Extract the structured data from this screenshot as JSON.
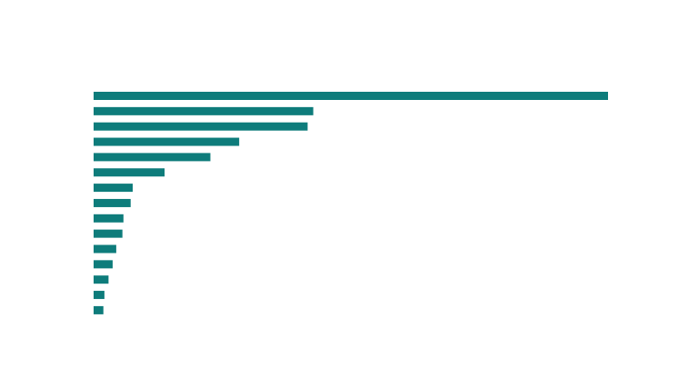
{
  "chart_data": {
    "type": "bar",
    "orientation": "horizontal",
    "title": "",
    "xlabel": "",
    "ylabel": "",
    "categories": [
      "",
      "",
      "",
      "",
      "",
      "",
      "",
      "",
      "",
      "",
      "",
      "",
      "",
      "",
      ""
    ],
    "values": [
      100,
      42.7,
      41.6,
      28.3,
      22.7,
      13.8,
      7.6,
      7.2,
      5.8,
      5.6,
      4.4,
      3.7,
      2.9,
      2.1,
      1.9
    ],
    "xlim": [
      0,
      100
    ],
    "grid": false,
    "legend": "none",
    "bar_color": "#0e7c7b"
  }
}
